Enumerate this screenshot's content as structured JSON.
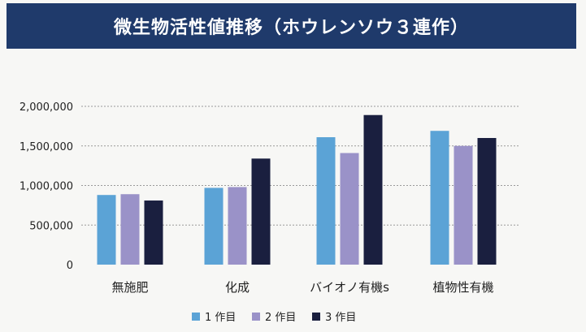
{
  "colors": {
    "header_bg": "#1f3a6b",
    "series": [
      "#5ba3d6",
      "#9a92c8",
      "#1a1f3f"
    ],
    "grid": "#9a9a9a"
  },
  "chart_data": {
    "type": "bar",
    "title": "微生物活性値推移（ホウレンソウ３連作）",
    "xlabel": "",
    "ylabel": "",
    "categories": [
      "無施肥",
      "化成",
      "バイオノ有機s",
      "植物性有機"
    ],
    "series": [
      {
        "name": "1 作目",
        "values": [
          880000,
          970000,
          1610000,
          1690000
        ]
      },
      {
        "name": "2 作目",
        "values": [
          890000,
          980000,
          1410000,
          1500000
        ]
      },
      {
        "name": "3 作目",
        "values": [
          810000,
          1340000,
          1890000,
          1600000
        ]
      }
    ],
    "ylim": [
      0,
      2000000
    ],
    "yticks": [
      0,
      500000,
      1000000,
      1500000,
      2000000
    ],
    "ytick_labels": [
      "0",
      "500,000",
      "1,000,000",
      "1,500,000",
      "2,000,000"
    ],
    "grid": true,
    "legend_position": "bottom-center"
  }
}
